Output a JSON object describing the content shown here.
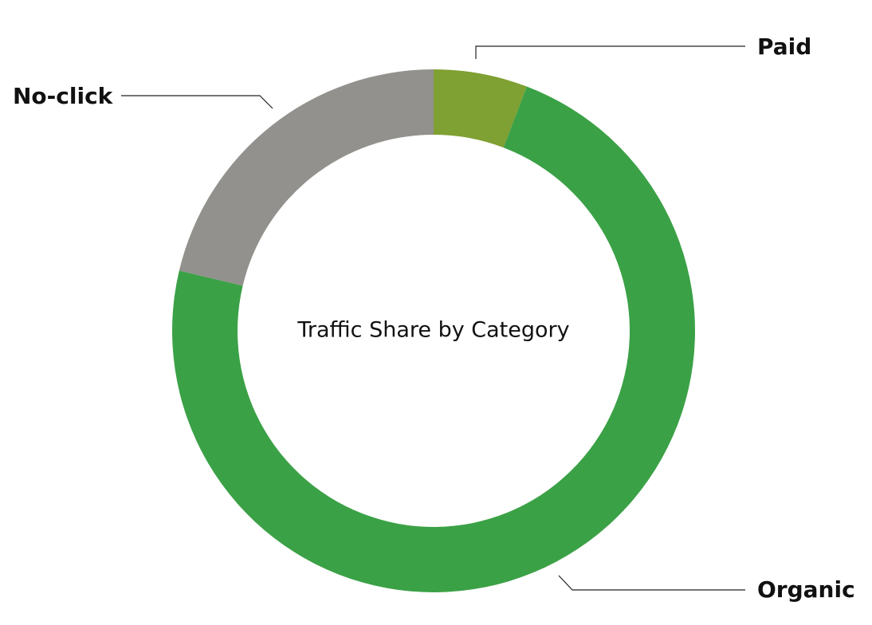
{
  "chart_data": {
    "type": "pie",
    "variant": "donut",
    "title": "Traffic Share by Category",
    "title_position": "center",
    "slices": [
      {
        "label": "Paid",
        "value": 5.8,
        "color": "#7fa032"
      },
      {
        "label": "Organic",
        "value": 72.9,
        "color": "#3ba146"
      },
      {
        "label": "No-click",
        "value": 21.3,
        "color": "#92918d"
      }
    ],
    "start_angle_deg": 0,
    "direction": "clockwise",
    "legend": "none",
    "labels": "outside with leader lines"
  }
}
